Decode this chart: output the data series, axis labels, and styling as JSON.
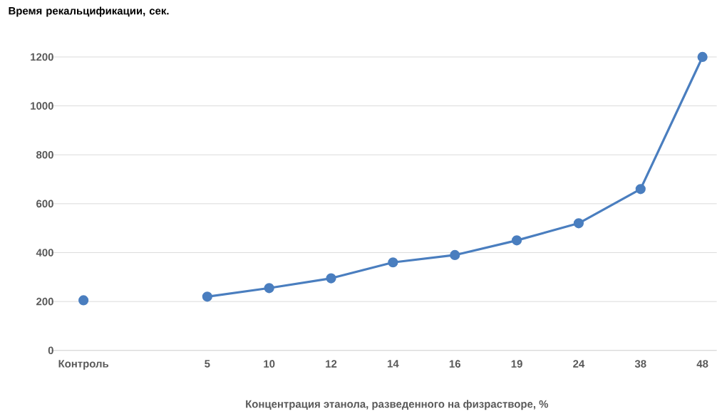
{
  "chart_data": {
    "type": "line",
    "ylabel": "Время рекальцификации, сек.",
    "xlabel": "Концентрация этанола, разведенного на физрастворе, %",
    "categories": [
      "Контроль",
      null,
      "5",
      "10",
      "12",
      "14",
      "16",
      "19",
      "24",
      "38",
      "48"
    ],
    "series": [
      {
        "color": "#4a7ebf",
        "values": [
          205,
          null,
          220,
          255,
          295,
          360,
          390,
          450,
          520,
          660,
          1200
        ]
      }
    ],
    "ylim": [
      0,
      1200
    ],
    "yticks": [
      0,
      200,
      400,
      600,
      800,
      1000,
      1200
    ],
    "grid": "y",
    "marker": "circle",
    "line_style": "solid",
    "legend": false
  }
}
